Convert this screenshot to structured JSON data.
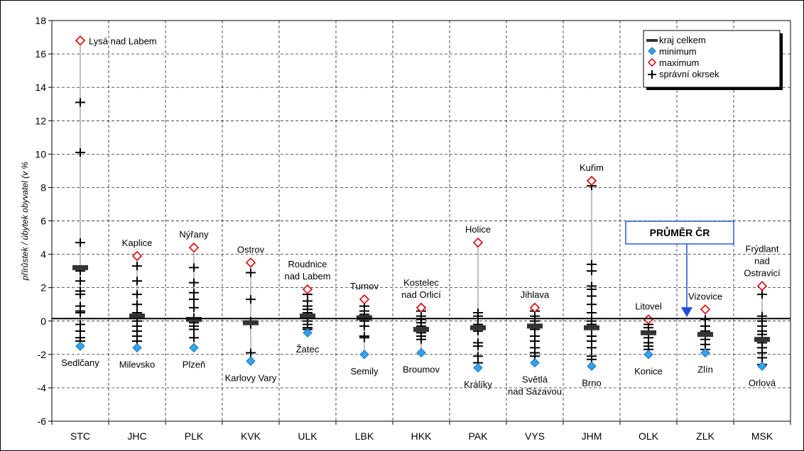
{
  "chart_data": {
    "type": "scatter",
    "ylabel": "přírůstek / úbytek obyvatel (v %",
    "ylim": [
      -6,
      18
    ],
    "yticks": [
      -6,
      -4,
      -2,
      0,
      2,
      4,
      6,
      8,
      10,
      12,
      14,
      16,
      18
    ],
    "grid": "dashed",
    "legend_position": "top-right",
    "legend": {
      "kraj": "kraj celkem",
      "min": "minimum",
      "max": "maximum",
      "okrsek": "správní okrsek"
    },
    "average": {
      "label": "PRŮMĚR ČR",
      "value": 0.15
    },
    "categories": [
      {
        "code": "STC",
        "kraj": 3.2,
        "min": -1.5,
        "max": 16.8,
        "min_label": "Sedlčany",
        "max_label": "Lysá nad Labem",
        "okrsky": [
          13.1,
          10.1,
          4.7,
          3.0,
          2.4,
          1.8,
          1.6,
          0.9,
          0.6,
          0.5,
          -0.2,
          -0.6,
          -1.0,
          -1.2
        ]
      },
      {
        "code": "JHC",
        "kraj": 0.3,
        "min": -1.6,
        "max": 3.9,
        "min_label": "Milevsko",
        "max_label": "Kaplice",
        "okrsky": [
          3.3,
          2.4,
          1.6,
          1.0,
          0.5,
          0.2,
          0.0,
          -0.3,
          -0.6,
          -0.9,
          -1.2
        ]
      },
      {
        "code": "PLK",
        "kraj": 0.1,
        "min": -1.6,
        "max": 4.4,
        "min_label": "Plzeň",
        "max_label": "Nýřany",
        "okrsky": [
          3.2,
          2.3,
          1.7,
          1.3,
          0.8,
          0.2,
          -0.1,
          -0.3,
          -0.5,
          -1.0
        ]
      },
      {
        "code": "KVK",
        "kraj": -0.1,
        "min": -2.4,
        "max": 3.5,
        "min_label": "Karlovy Vary",
        "max_label": "Ostrov",
        "okrsky": [
          2.9,
          1.3,
          0.0,
          -0.1,
          -0.2,
          -1.9
        ]
      },
      {
        "code": "ULK",
        "kraj": 0.3,
        "min": -0.7,
        "max": 1.9,
        "min_label": "Žatec",
        "max_label": "Roudnice nad Labem",
        "okrsky": [
          1.6,
          1.2,
          0.9,
          0.7,
          0.5,
          0.4,
          0.2,
          0.0,
          -0.2,
          -0.4,
          -0.5
        ]
      },
      {
        "code": "LBK",
        "kraj": 0.2,
        "min": -2.0,
        "max": 1.3,
        "min_label": "Semily",
        "max_label": "Turnov",
        "okrsky": [
          0.9,
          0.6,
          0.4,
          0.2,
          0.0,
          -0.3,
          -0.9,
          -1.0
        ]
      },
      {
        "code": "HKK",
        "kraj": -0.5,
        "min": -1.9,
        "max": 0.8,
        "min_label": "Broumov",
        "max_label": "Kostelec nad Orlicí",
        "okrsky": [
          0.6,
          0.3,
          0.1,
          -0.1,
          -0.3,
          -0.5,
          -0.7,
          -0.9,
          -1.1
        ]
      },
      {
        "code": "PAK",
        "kraj": -0.4,
        "min": -2.8,
        "max": 4.7,
        "min_label": "Králíky",
        "max_label": "Holice",
        "okrsky": [
          0.5,
          0.3,
          -0.2,
          -0.4,
          -0.6,
          -1.3,
          -1.5,
          -2.1,
          -2.5
        ]
      },
      {
        "code": "VYS",
        "kraj": -0.3,
        "min": -2.5,
        "max": 0.8,
        "min_label": "Světlá nad Sázavou",
        "max_label": "Jihlava",
        "okrsky": [
          0.6,
          0.3,
          0.0,
          -0.3,
          -0.5,
          -0.9,
          -1.2,
          -1.6,
          -1.9,
          -2.1
        ]
      },
      {
        "code": "JHM",
        "kraj": -0.4,
        "min": -2.7,
        "max": 8.4,
        "min_label": "Brno",
        "max_label": "Kuřim",
        "okrsky": [
          8.1,
          3.4,
          3.0,
          2.1,
          1.9,
          1.5,
          1.0,
          0.5,
          0.0,
          -0.2,
          -0.5,
          -0.9,
          -1.2,
          -1.6,
          -2.1,
          -2.3
        ]
      },
      {
        "code": "OLK",
        "kraj": -0.7,
        "min": -2.0,
        "max": 0.1,
        "min_label": "Konice",
        "max_label": "Litovel",
        "okrsky": [
          -0.2,
          -0.4,
          -0.7,
          -1.0,
          -1.3,
          -1.5,
          -1.7
        ]
      },
      {
        "code": "ZLK",
        "kraj": -0.8,
        "min": -1.9,
        "max": 0.7,
        "min_label": "Zlín",
        "max_label": "Vizovice",
        "okrsky": [
          0.1,
          -0.3,
          -0.6,
          -0.9,
          -1.1,
          -1.4,
          -1.7
        ]
      },
      {
        "code": "MSK",
        "kraj": -1.1,
        "min": -2.7,
        "max": 2.1,
        "min_label": "Orlová",
        "max_label": "Frýdlant nad Ostravicí",
        "okrsky": [
          1.6,
          0.3,
          0.0,
          -0.3,
          -0.6,
          -0.8,
          -1.0,
          -1.3,
          -1.6,
          -1.9,
          -2.2,
          -2.6
        ]
      }
    ]
  }
}
